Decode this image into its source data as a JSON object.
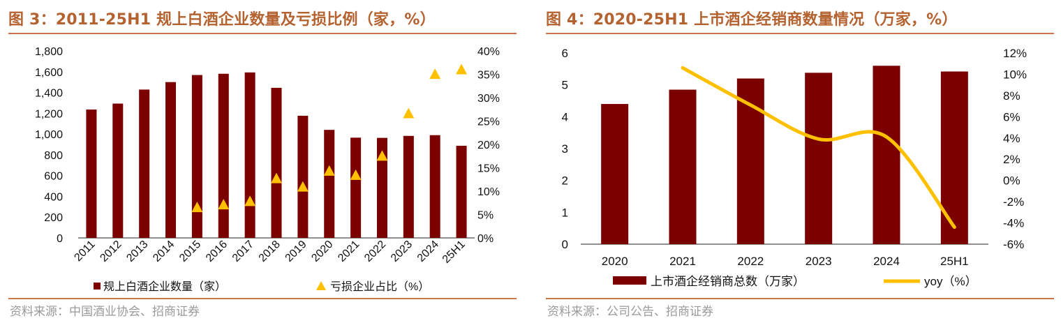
{
  "colors": {
    "title": "#B4622F",
    "bar": "#7B0000",
    "line": "#FFC000",
    "marker": "#FFC000",
    "rule": "#C9764A"
  },
  "left": {
    "title": "图 3：2011-25H1 规上白酒企业数量及亏损比例（家，%）",
    "source": "资料来源：中国酒业协会、招商证券",
    "y_left_ticks": [
      "1,800",
      "1,600",
      "1,400",
      "1,200",
      "1,000",
      "800",
      "600",
      "400",
      "200",
      "0"
    ],
    "y_right_ticks": [
      "40%",
      "35%",
      "30%",
      "25%",
      "20%",
      "15%",
      "10%",
      "5%",
      "0%"
    ],
    "legend_bar": "规上白酒企业数量（家）",
    "legend_marker": "亏损企业占比（%）"
  },
  "right": {
    "title": "图 4：2020-25H1 上市酒企经销商数量情况（万家，%）",
    "source": "资料来源：公司公告、招商证券",
    "y_left_ticks": [
      "6",
      "5",
      "4",
      "3",
      "2",
      "1",
      "0"
    ],
    "y_right_ticks": [
      "12%",
      "10%",
      "8%",
      "6%",
      "4%",
      "2%",
      "0%",
      "-2%",
      "-4%",
      "-6%"
    ],
    "legend_bar": "上市酒企经销商总数（万家）",
    "legend_line": "yoy（%）"
  },
  "chart_data": [
    {
      "type": "bar",
      "title": "图 3：2011-25H1 规上白酒企业数量及亏损比例（家，%）",
      "categories": [
        "2011",
        "2012",
        "2013",
        "2014",
        "2015",
        "2016",
        "2017",
        "2018",
        "2019",
        "2020",
        "2021",
        "2022",
        "2023",
        "2024",
        "25H1"
      ],
      "series": [
        {
          "name": "规上白酒企业数量（家）",
          "kind": "bar",
          "axis": "left",
          "values": [
            1236,
            1293,
            1428,
            1500,
            1568,
            1580,
            1593,
            1445,
            1176,
            1040,
            965,
            963,
            982,
            989,
            887
          ]
        },
        {
          "name": "亏损企业占比（%）",
          "kind": "marker",
          "axis": "right",
          "values": [
            null,
            null,
            null,
            null,
            6.4,
            7.0,
            7.7,
            12.6,
            10.8,
            14.2,
            13.3,
            17.4,
            26.5,
            34.9,
            35.9
          ]
        }
      ],
      "ylim_left": [
        0,
        1800
      ],
      "ylim_right": [
        0,
        40
      ],
      "legend": "bottom",
      "grid": false
    },
    {
      "type": "bar",
      "title": "图 4：2020-25H1 上市酒企经销商数量情况（万家，%）",
      "categories": [
        "2020",
        "2021",
        "2022",
        "2023",
        "2024",
        "25H1"
      ],
      "series": [
        {
          "name": "上市酒企经销商总数（万家）",
          "kind": "bar",
          "axis": "left",
          "values": [
            4.4,
            4.85,
            5.2,
            5.38,
            5.6,
            5.42
          ]
        },
        {
          "name": "yoy（%）",
          "kind": "line",
          "axis": "right",
          "values": [
            null,
            10.6,
            7.1,
            3.9,
            4.1,
            -4.4
          ]
        }
      ],
      "ylim_left": [
        0,
        6
      ],
      "ylim_right": [
        -6,
        12
      ],
      "legend": "bottom",
      "grid": false
    }
  ]
}
